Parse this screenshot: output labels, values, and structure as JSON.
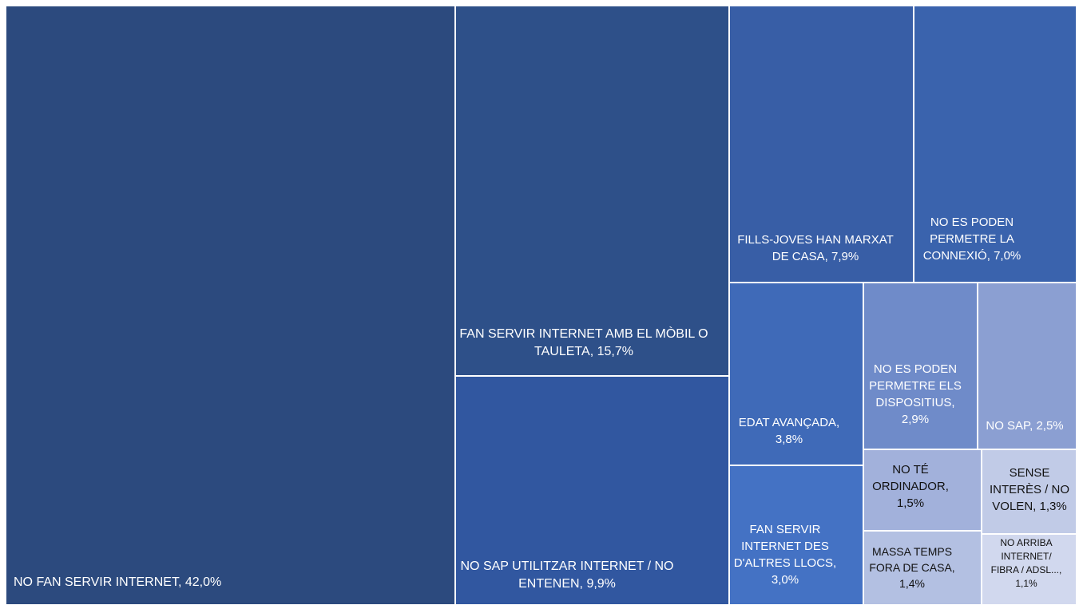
{
  "chart_data": {
    "type": "treemap",
    "title": "",
    "items": [
      {
        "id": "no-fan-servir-internet",
        "label": "NO FAN SERVIR INTERNET, 42,0%",
        "value": 42.0,
        "color": "#2c4a7e",
        "text_color": "#ffffff"
      },
      {
        "id": "mobil-tauleta",
        "label": "FAN SERVIR INTERNET AMB EL MÒBIL O\nTAULETA, 15,7%",
        "value": 15.7,
        "color": "#2e5089",
        "text_color": "#ffffff"
      },
      {
        "id": "no-sap-utilitzar",
        "label": "NO SAP UTILITZAR INTERNET / NO\nENTENEN, 9,9%",
        "value": 9.9,
        "color": "#3157a0",
        "text_color": "#ffffff"
      },
      {
        "id": "fills-joves",
        "label": "FILLS-JOVES HAN MARXAT\nDE CASA, 7,9%",
        "value": 7.9,
        "color": "#385ea6",
        "text_color": "#ffffff"
      },
      {
        "id": "connexio",
        "label": "NO ES PODEN\nPERMETRE LA\nCONNEXIÓ, 7,0%",
        "value": 7.0,
        "color": "#3a63ad",
        "text_color": "#ffffff"
      },
      {
        "id": "edat-avancada",
        "label": "EDAT AVANÇADA,\n3,8%",
        "value": 3.8,
        "color": "#3f6ab8",
        "text_color": "#ffffff"
      },
      {
        "id": "altres-llocs",
        "label": "FAN SERVIR\nINTERNET DES\nD'ALTRES LLOCS,\n3,0%",
        "value": 3.0,
        "color": "#4472c4",
        "text_color": "#ffffff"
      },
      {
        "id": "dispositius",
        "label": "NO ES PODEN\nPERMETRE ELS\nDISPOSITIUS,\n2,9%",
        "value": 2.9,
        "color": "#6f8bc9",
        "text_color": "#ffffff"
      },
      {
        "id": "no-sap",
        "label": "NO SAP, 2,5%",
        "value": 2.5,
        "color": "#8b9fd2",
        "text_color": "#ffffff"
      },
      {
        "id": "ordinador",
        "label": "NO TÉ\nORDINADOR,\n1,5%",
        "value": 1.5,
        "color": "#a2b1db",
        "text_color": "#111111"
      },
      {
        "id": "massa-temps",
        "label": "MASSA TEMPS\nFORA DE CASA,\n1,4%",
        "value": 1.4,
        "color": "#b3c0e2",
        "text_color": "#111111"
      },
      {
        "id": "sense-interes",
        "label": "SENSE\nINTERÈS / NO\nVOLEN, 1,3%",
        "value": 1.3,
        "color": "#c1cbe7",
        "text_color": "#111111"
      },
      {
        "id": "no-arriba",
        "label": "NO ARRIBA\nINTERNET/\nFIBRA / ADSL...,\n1,1%",
        "value": 1.1,
        "color": "#d1d8ee",
        "text_color": "#111111"
      }
    ]
  }
}
